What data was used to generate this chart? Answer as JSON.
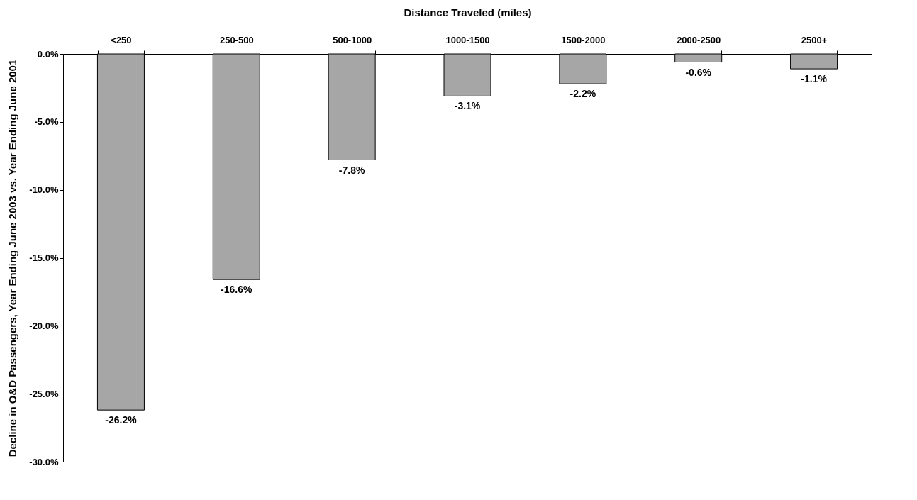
{
  "chart_data": {
    "type": "bar",
    "xlabel": "Distance Traveled (miles)",
    "ylabel": "Decline in O&D Passengers, Year Ending June 2003 vs. Year Ending June 2001",
    "categories": [
      "<250",
      "250-500",
      "500-1000",
      "1000-1500",
      "1500-2000",
      "2000-2500",
      "2500+"
    ],
    "values": [
      -26.2,
      -16.6,
      -7.8,
      -3.1,
      -2.2,
      -0.6,
      -1.1
    ],
    "value_labels": [
      "-26.2%",
      "-16.6%",
      "-7.8%",
      "-3.1%",
      "-2.2%",
      "-0.6%",
      "-1.1%"
    ],
    "color": "#a6a6a6",
    "ylim": [
      -30,
      0
    ],
    "yticks": [
      {
        "value": 0,
        "label": "0.0%"
      },
      {
        "value": -5,
        "label": "-5.0%"
      },
      {
        "value": -10,
        "label": "-10.0%"
      },
      {
        "value": -15,
        "label": "-15.0%"
      },
      {
        "value": -20,
        "label": "-20.0%"
      },
      {
        "value": -25,
        "label": "-25.0%"
      },
      {
        "value": -30,
        "label": "-30.0%"
      }
    ],
    "grid": false
  }
}
